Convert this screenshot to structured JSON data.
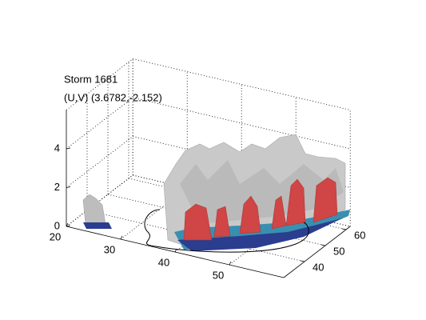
{
  "chart_data": {
    "type": "surface3d",
    "title": "Storm 1681",
    "subtitle": "(U,V) (3.6782,-2.152)",
    "xlim": [
      20,
      60
    ],
    "xticks": [
      20,
      30,
      40,
      50
    ],
    "ylim": [
      30,
      62
    ],
    "yticks": [
      40,
      50,
      60
    ],
    "zlim": [
      0,
      6
    ],
    "zticks": [
      0,
      2,
      4
    ],
    "grid": true
  }
}
